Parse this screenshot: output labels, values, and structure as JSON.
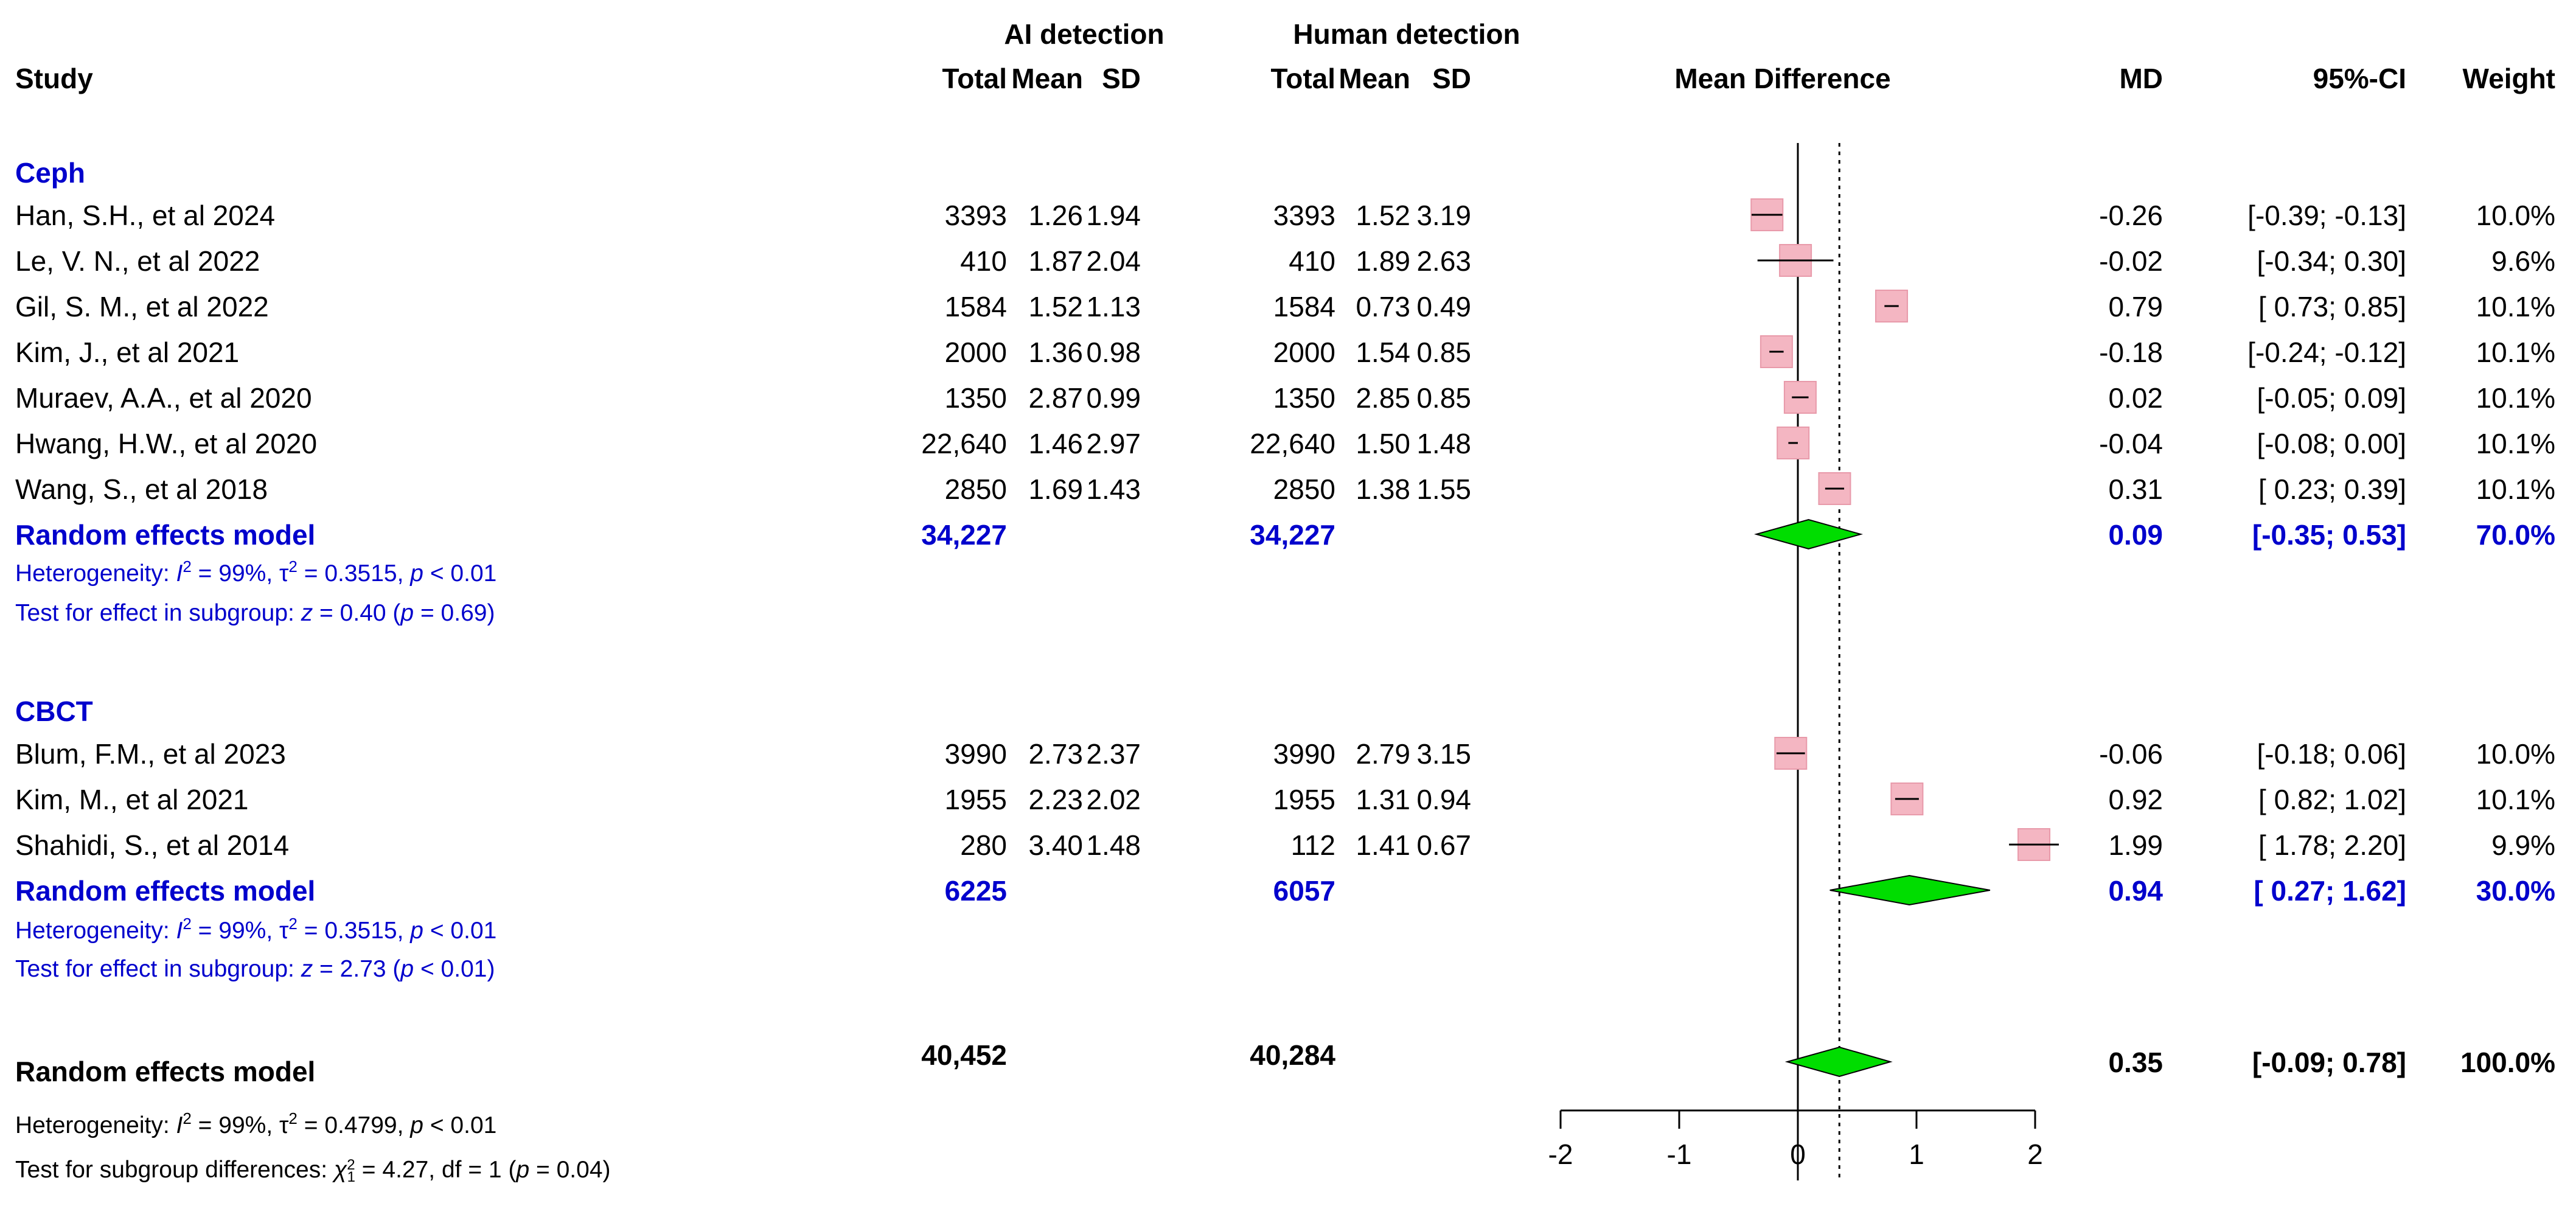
{
  "chart_data": {
    "type": "forest",
    "columns": {
      "study": "Study",
      "group_ai": "AI detection",
      "group_human": "Human detection",
      "total": "Total",
      "mean": "Mean",
      "sd": "SD",
      "plot": "Mean Difference",
      "md": "MD",
      "ci": "95%-CI",
      "weight": "Weight"
    },
    "subgroups": [
      {
        "name": "Ceph",
        "studies": [
          {
            "label": "Han, S.H., et al 2024",
            "ai_total": "3393",
            "ai_mean": "1.26",
            "ai_sd": "1.94",
            "hu_total": "3393",
            "hu_mean": "1.52",
            "hu_sd": "3.19",
            "md": -0.26,
            "lo": -0.39,
            "hi": -0.13,
            "md_text": "-0.26",
            "ci_text": "[-0.39; -0.13]",
            "weight_text": "10.0%"
          },
          {
            "label": "Le, V. N., et al 2022",
            "ai_total": "410",
            "ai_mean": "1.87",
            "ai_sd": "2.04",
            "hu_total": "410",
            "hu_mean": "1.89",
            "hu_sd": "2.63",
            "md": -0.02,
            "lo": -0.34,
            "hi": 0.3,
            "md_text": "-0.02",
            "ci_text": "[-0.34; 0.30]",
            "weight_text": "9.6%"
          },
          {
            "label": "Gil, S. M., et al 2022",
            "ai_total": "1584",
            "ai_mean": "1.52",
            "ai_sd": "1.13",
            "hu_total": "1584",
            "hu_mean": "0.73",
            "hu_sd": "0.49",
            "md": 0.79,
            "lo": 0.73,
            "hi": 0.85,
            "md_text": "0.79",
            "ci_text": "[ 0.73; 0.85]",
            "weight_text": "10.1%"
          },
          {
            "label": "Kim, J., et al 2021",
            "ai_total": "2000",
            "ai_mean": "1.36",
            "ai_sd": "0.98",
            "hu_total": "2000",
            "hu_mean": "1.54",
            "hu_sd": "0.85",
            "md": -0.18,
            "lo": -0.24,
            "hi": -0.12,
            "md_text": "-0.18",
            "ci_text": "[-0.24; -0.12]",
            "weight_text": "10.1%"
          },
          {
            "label": "Muraev, A.A., et al  2020",
            "ai_total": "1350",
            "ai_mean": "2.87",
            "ai_sd": "0.99",
            "hu_total": "1350",
            "hu_mean": "2.85",
            "hu_sd": "0.85",
            "md": 0.02,
            "lo": -0.05,
            "hi": 0.09,
            "md_text": "0.02",
            "ci_text": "[-0.05; 0.09]",
            "weight_text": "10.1%"
          },
          {
            "label": "Hwang, H.W., et al 2020",
            "ai_total": "22,640",
            "ai_mean": "1.46",
            "ai_sd": "2.97",
            "hu_total": "22,640",
            "hu_mean": "1.50",
            "hu_sd": "1.48",
            "md": -0.04,
            "lo": -0.08,
            "hi": 0.0,
            "md_text": "-0.04",
            "ci_text": "[-0.08; 0.00]",
            "weight_text": "10.1%"
          },
          {
            "label": "Wang, S., et al 2018",
            "ai_total": "2850",
            "ai_mean": "1.69",
            "ai_sd": "1.43",
            "hu_total": "2850",
            "hu_mean": "1.38",
            "hu_sd": "1.55",
            "md": 0.31,
            "lo": 0.23,
            "hi": 0.39,
            "md_text": "0.31",
            "ci_text": "[ 0.23; 0.39]",
            "weight_text": "10.1%"
          }
        ],
        "pooled": {
          "label": "Random effects model",
          "ai_total": "34,227",
          "hu_total": "34,227",
          "md": 0.09,
          "lo": -0.35,
          "hi": 0.53,
          "md_text": "0.09",
          "ci_text": "[-0.35; 0.53]",
          "weight_text": "70.0%"
        },
        "heterogeneity": {
          "prefix": "Heterogeneity: ",
          "i2": " = 99%, ",
          "tau2": " = 0.3515, ",
          "p": " < 0.01"
        },
        "effect_test": {
          "prefix": "Test for effect in subgroup: ",
          "z": " = 0.40 (",
          "p": " = 0.69)"
        }
      },
      {
        "name": "CBCT",
        "studies": [
          {
            "label": "Blum, F.M., et al 2023",
            "ai_total": "3990",
            "ai_mean": "2.73",
            "ai_sd": "2.37",
            "hu_total": "3990",
            "hu_mean": "2.79",
            "hu_sd": "3.15",
            "md": -0.06,
            "lo": -0.18,
            "hi": 0.06,
            "md_text": "-0.06",
            "ci_text": "[-0.18; 0.06]",
            "weight_text": "10.0%"
          },
          {
            "label": "Kim, M., et al  2021",
            "ai_total": "1955",
            "ai_mean": "2.23",
            "ai_sd": "2.02",
            "hu_total": "1955",
            "hu_mean": "1.31",
            "hu_sd": "0.94",
            "md": 0.92,
            "lo": 0.82,
            "hi": 1.02,
            "md_text": "0.92",
            "ci_text": "[ 0.82; 1.02]",
            "weight_text": "10.1%"
          },
          {
            "label": "Shahidi, S., et al 2014",
            "ai_total": "280",
            "ai_mean": "3.40",
            "ai_sd": "1.48",
            "hu_total": "112",
            "hu_mean": "1.41",
            "hu_sd": "0.67",
            "md": 1.99,
            "lo": 1.78,
            "hi": 2.2,
            "md_text": "1.99",
            "ci_text": "[ 1.78; 2.20]",
            "weight_text": "9.9%"
          }
        ],
        "pooled": {
          "label": "Random effects model",
          "ai_total": "6225",
          "hu_total": "6057",
          "md": 0.94,
          "lo": 0.27,
          "hi": 1.62,
          "md_text": "0.94",
          "ci_text": "[ 0.27; 1.62]",
          "weight_text": "30.0%"
        },
        "heterogeneity": {
          "prefix": "Heterogeneity: ",
          "i2": " = 99%, ",
          "tau2": " = 0.3515, ",
          "p": " < 0.01"
        },
        "effect_test": {
          "prefix": "Test for effect in subgroup: ",
          "z": " = 2.73 (",
          "p": " < 0.01)"
        }
      }
    ],
    "overall": {
      "label": "Random effects model",
      "ai_total": "40,452",
      "hu_total": "40,284",
      "md": 0.35,
      "lo": -0.09,
      "hi": 0.78,
      "md_text": "0.35",
      "ci_text": "[-0.09; 0.78]",
      "weight_text": "100.0%",
      "heterogeneity": {
        "prefix": "Heterogeneity: ",
        "i2": " = 99%, ",
        "tau2": " = 0.4799, ",
        "p": " < 0.01"
      },
      "subgroup_test": {
        "prefix": "Test for subgroup differences: ",
        "chi": " = 4.27, df = 1 (",
        "p": " = 0.04)"
      }
    },
    "x_axis": {
      "ticks": [
        -2,
        -1,
        0,
        1,
        2
      ],
      "tick_labels": [
        "-2",
        "-1",
        "0",
        "1",
        "2"
      ],
      "range": [
        -2,
        2
      ],
      "null_line": 0,
      "summary_line": 0.35
    },
    "colors": {
      "subgroup_text": "#0000cc",
      "square": "#f4b6c2",
      "diamond": "#00dd00",
      "ci_line": "#000000"
    }
  }
}
